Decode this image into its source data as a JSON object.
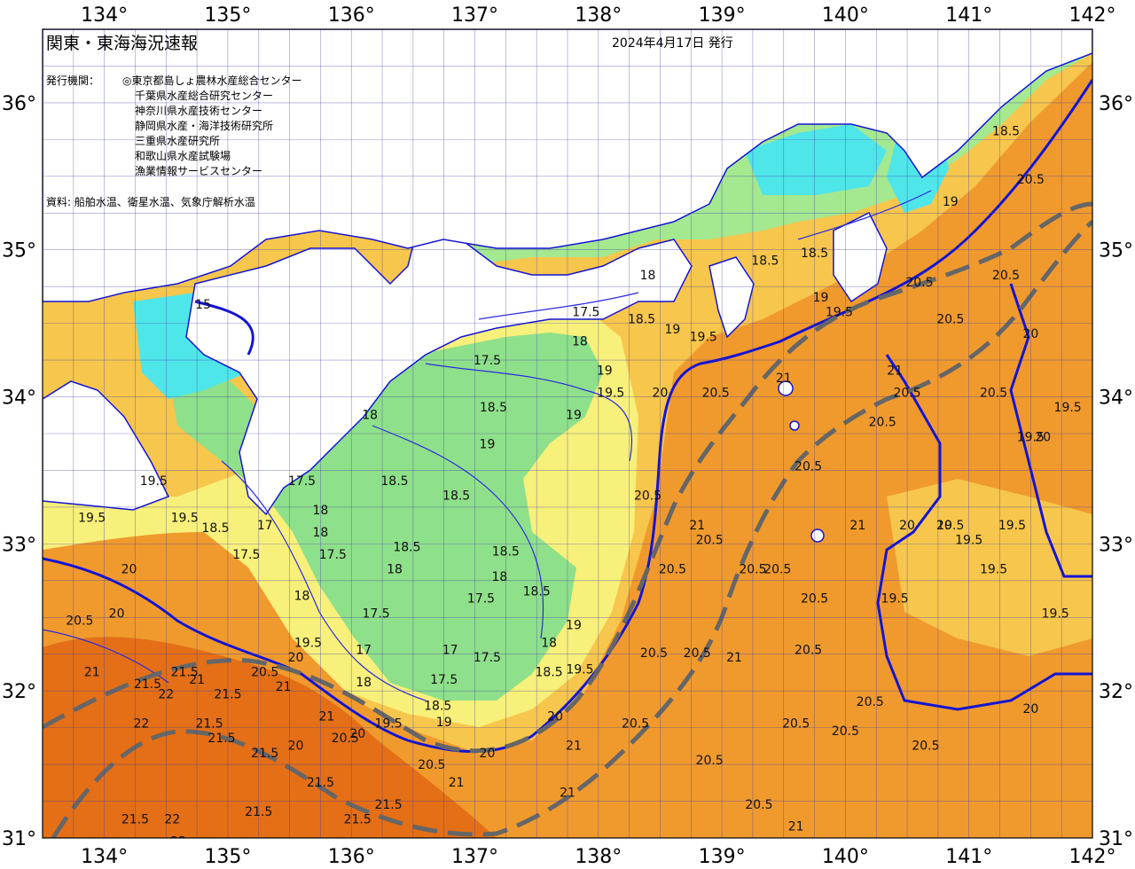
{
  "header": {
    "title": "関東・東海海況速報",
    "issue_date": "2024年4月17日 発行",
    "org_label": "発行機関：",
    "organizations": [
      "◎東京都島しょ農林水産総合センター",
      "千葉県水産総合研究センター",
      "神奈川県水産技術センター",
      "静岡県水産・海洋技術研究所",
      "三重県水産研究所",
      "和歌山県水産試験場",
      "漁業情報サービスセンター"
    ],
    "source": "資料: 船舶水温、衛星水温、気象庁解析水温"
  },
  "axes": {
    "longitude_labels": [
      "134°",
      "135°",
      "136°",
      "137°",
      "138°",
      "139°",
      "140°",
      "141°",
      "142°"
    ],
    "latitude_labels": [
      "36°",
      "35°",
      "34°",
      "33°",
      "32°",
      "31°"
    ]
  },
  "colors": {
    "sea_warm": "#f09a2e",
    "sea_hot": "#e46f16",
    "sea_mid": "#f7c64c",
    "sea_yellow": "#f7f07a",
    "sea_green": "#8fe08a",
    "sea_cyan": "#4fe6ea",
    "land": "#ffffff",
    "isotherm": "#1414d2",
    "kuroshio": "#666666"
  },
  "isotherm_labels": [
    {
      "text": "15",
      "lon": 134.8,
      "lat": 34.6
    },
    {
      "text": "17.5",
      "lon": 137.9,
      "lat": 34.55
    },
    {
      "text": "18",
      "lon": 138.4,
      "lat": 34.8
    },
    {
      "text": "17.5",
      "lon": 137.1,
      "lat": 34.22
    },
    {
      "text": "18.5",
      "lon": 137.15,
      "lat": 33.9
    },
    {
      "text": "18",
      "lon": 136.15,
      "lat": 33.85
    },
    {
      "text": "18.5",
      "lon": 136.35,
      "lat": 33.4
    },
    {
      "text": "18.5",
      "lon": 136.85,
      "lat": 33.3
    },
    {
      "text": "19",
      "lon": 137.1,
      "lat": 33.65
    },
    {
      "text": "19",
      "lon": 137.8,
      "lat": 33.85
    },
    {
      "text": "19.5",
      "lon": 138.1,
      "lat": 34.0
    },
    {
      "text": "19",
      "lon": 138.05,
      "lat": 34.15
    },
    {
      "text": "18",
      "lon": 137.85,
      "lat": 34.35
    },
    {
      "text": "18.5",
      "lon": 138.35,
      "lat": 34.5
    },
    {
      "text": "19",
      "lon": 138.6,
      "lat": 34.43
    },
    {
      "text": "19.5",
      "lon": 138.85,
      "lat": 34.38
    },
    {
      "text": "20",
      "lon": 138.5,
      "lat": 34.0
    },
    {
      "text": "20.5",
      "lon": 138.95,
      "lat": 34.0
    },
    {
      "text": "18.5",
      "lon": 139.35,
      "lat": 34.9
    },
    {
      "text": "18.5",
      "lon": 139.75,
      "lat": 34.95
    },
    {
      "text": "19",
      "lon": 139.8,
      "lat": 34.65
    },
    {
      "text": "19.5",
      "lon": 139.95,
      "lat": 34.55
    },
    {
      "text": "20.5",
      "lon": 140.6,
      "lat": 34.75
    },
    {
      "text": "20.5",
      "lon": 140.85,
      "lat": 34.5
    },
    {
      "text": "20.5",
      "lon": 141.3,
      "lat": 34.8
    },
    {
      "text": "20",
      "lon": 141.5,
      "lat": 34.4
    },
    {
      "text": "19",
      "lon": 140.85,
      "lat": 35.3
    },
    {
      "text": "18.5",
      "lon": 141.3,
      "lat": 35.78
    },
    {
      "text": "20.5",
      "lon": 141.5,
      "lat": 35.45
    },
    {
      "text": "21",
      "lon": 139.5,
      "lat": 34.1
    },
    {
      "text": "20.5",
      "lon": 140.3,
      "lat": 33.8
    },
    {
      "text": "20.5",
      "lon": 139.7,
      "lat": 33.5
    },
    {
      "text": "20.5",
      "lon": 138.4,
      "lat": 33.3
    },
    {
      "text": "21",
      "lon": 138.8,
      "lat": 33.1
    },
    {
      "text": "20.5",
      "lon": 138.9,
      "lat": 33.0
    },
    {
      "text": "20.5",
      "lon": 138.6,
      "lat": 32.8
    },
    {
      "text": "20.5",
      "lon": 139.25,
      "lat": 32.8
    },
    {
      "text": "20.5",
      "lon": 139.45,
      "lat": 32.8
    },
    {
      "text": "20.5",
      "lon": 139.75,
      "lat": 32.6
    },
    {
      "text": "20.5",
      "lon": 138.45,
      "lat": 32.23
    },
    {
      "text": "20.5",
      "lon": 138.8,
      "lat": 32.23
    },
    {
      "text": "21",
      "lon": 139.1,
      "lat": 32.2
    },
    {
      "text": "20.5",
      "lon": 139.7,
      "lat": 32.25
    },
    {
      "text": "20.5",
      "lon": 140.2,
      "lat": 31.9
    },
    {
      "text": "20.5",
      "lon": 139.6,
      "lat": 31.75
    },
    {
      "text": "20.5",
      "lon": 140.0,
      "lat": 31.7
    },
    {
      "text": "20.5",
      "lon": 138.9,
      "lat": 31.5
    },
    {
      "text": "20.5",
      "lon": 140.65,
      "lat": 31.6
    },
    {
      "text": "20.5",
      "lon": 139.3,
      "lat": 31.2
    },
    {
      "text": "20.5",
      "lon": 138.3,
      "lat": 31.75
    },
    {
      "text": "21",
      "lon": 139.6,
      "lat": 31.05
    },
    {
      "text": "21",
      "lon": 140.1,
      "lat": 33.1
    },
    {
      "text": "20",
      "lon": 140.5,
      "lat": 33.1
    },
    {
      "text": "20",
      "lon": 140.8,
      "lat": 33.1
    },
    {
      "text": "20",
      "lon": 141.5,
      "lat": 31.85
    },
    {
      "text": "19.5",
      "lon": 140.85,
      "lat": 33.1
    },
    {
      "text": "19.5",
      "lon": 141.0,
      "lat": 33.0
    },
    {
      "text": "19.5",
      "lon": 141.35,
      "lat": 33.1
    },
    {
      "text": "19.5",
      "lon": 141.5,
      "lat": 33.7
    },
    {
      "text": "19.5",
      "lon": 141.8,
      "lat": 33.9
    },
    {
      "text": "19.5",
      "lon": 141.7,
      "lat": 32.5
    },
    {
      "text": "19.5",
      "lon": 141.2,
      "lat": 32.8
    },
    {
      "text": "19.5",
      "lon": 140.4,
      "lat": 32.6
    },
    {
      "text": "20",
      "lon": 141.6,
      "lat": 33.7
    },
    {
      "text": "20.5",
      "lon": 141.2,
      "lat": 34.0
    },
    {
      "text": "20.5",
      "lon": 140.5,
      "lat": 34.0
    },
    {
      "text": "21",
      "lon": 140.4,
      "lat": 34.15
    },
    {
      "text": "19.5",
      "lon": 134.4,
      "lat": 33.4
    },
    {
      "text": "19.5",
      "lon": 134.65,
      "lat": 33.15
    },
    {
      "text": "18.5",
      "lon": 134.9,
      "lat": 33.08
    },
    {
      "text": "17.5",
      "lon": 135.15,
      "lat": 32.9
    },
    {
      "text": "17",
      "lon": 135.3,
      "lat": 33.1
    },
    {
      "text": "18",
      "lon": 135.6,
      "lat": 32.62
    },
    {
      "text": "18",
      "lon": 135.75,
      "lat": 33.05
    },
    {
      "text": "17.5",
      "lon": 135.85,
      "lat": 32.9
    },
    {
      "text": "17.5",
      "lon": 135.6,
      "lat": 33.4
    },
    {
      "text": "18",
      "lon": 135.75,
      "lat": 33.2
    },
    {
      "text": "17.5",
      "lon": 136.2,
      "lat": 32.5
    },
    {
      "text": "18",
      "lon": 136.35,
      "lat": 32.8
    },
    {
      "text": "18.5",
      "lon": 136.45,
      "lat": 32.95
    },
    {
      "text": "18.5",
      "lon": 137.25,
      "lat": 32.92
    },
    {
      "text": "18",
      "lon": 137.2,
      "lat": 32.75
    },
    {
      "text": "17.5",
      "lon": 137.05,
      "lat": 32.6
    },
    {
      "text": "18.5",
      "lon": 137.5,
      "lat": 32.65
    },
    {
      "text": "17.5",
      "lon": 137.1,
      "lat": 32.2
    },
    {
      "text": "17",
      "lon": 136.8,
      "lat": 32.25
    },
    {
      "text": "17",
      "lon": 136.1,
      "lat": 32.25
    },
    {
      "text": "18",
      "lon": 136.1,
      "lat": 32.03
    },
    {
      "text": "17.5",
      "lon": 136.75,
      "lat": 32.05
    },
    {
      "text": "18.5",
      "lon": 136.7,
      "lat": 31.87
    },
    {
      "text": "19",
      "lon": 136.75,
      "lat": 31.76
    },
    {
      "text": "18",
      "lon": 137.6,
      "lat": 32.3
    },
    {
      "text": "19",
      "lon": 137.8,
      "lat": 32.42
    },
    {
      "text": "19.5",
      "lon": 137.85,
      "lat": 32.12
    },
    {
      "text": "18.5",
      "lon": 137.6,
      "lat": 32.1
    },
    {
      "text": "20",
      "lon": 137.65,
      "lat": 31.8
    },
    {
      "text": "19.5",
      "lon": 136.3,
      "lat": 31.75
    },
    {
      "text": "20",
      "lon": 136.05,
      "lat": 31.68
    },
    {
      "text": "20.5",
      "lon": 136.65,
      "lat": 31.47
    },
    {
      "text": "21",
      "lon": 136.85,
      "lat": 31.35
    },
    {
      "text": "20",
      "lon": 137.1,
      "lat": 31.55
    },
    {
      "text": "21",
      "lon": 137.8,
      "lat": 31.6
    },
    {
      "text": "21",
      "lon": 137.75,
      "lat": 31.28
    },
    {
      "text": "21.5",
      "lon": 136.3,
      "lat": 31.2
    },
    {
      "text": "21.5",
      "lon": 136.05,
      "lat": 31.1
    },
    {
      "text": "21.5",
      "lon": 135.75,
      "lat": 31.35
    },
    {
      "text": "21.5",
      "lon": 135.3,
      "lat": 31.55
    },
    {
      "text": "21.5",
      "lon": 135.0,
      "lat": 31.95
    },
    {
      "text": "21.5",
      "lon": 134.85,
      "lat": 31.75
    },
    {
      "text": "21.5",
      "lon": 134.95,
      "lat": 31.65
    },
    {
      "text": "21.5",
      "lon": 134.65,
      "lat": 32.1
    },
    {
      "text": "21.5",
      "lon": 134.35,
      "lat": 32.02
    },
    {
      "text": "21",
      "lon": 134.75,
      "lat": 32.05
    },
    {
      "text": "21",
      "lon": 135.8,
      "lat": 31.8
    },
    {
      "text": "21.5",
      "lon": 134.25,
      "lat": 31.1
    },
    {
      "text": "22",
      "lon": 134.5,
      "lat": 31.95
    },
    {
      "text": "22",
      "lon": 134.3,
      "lat": 31.75
    },
    {
      "text": "22",
      "lon": 134.55,
      "lat": 31.1
    },
    {
      "text": "22",
      "lon": 134.6,
      "lat": 30.95
    },
    {
      "text": "21",
      "lon": 133.9,
      "lat": 32.1
    },
    {
      "text": "21.5",
      "lon": 135.25,
      "lat": 31.15
    },
    {
      "text": "20.5",
      "lon": 133.8,
      "lat": 32.45
    },
    {
      "text": "20",
      "lon": 134.1,
      "lat": 32.5
    },
    {
      "text": "20",
      "lon": 134.2,
      "lat": 32.8
    },
    {
      "text": "20",
      "lon": 135.55,
      "lat": 31.6
    },
    {
      "text": "20.5",
      "lon": 135.3,
      "lat": 32.1
    },
    {
      "text": "21",
      "lon": 135.45,
      "lat": 32.0
    },
    {
      "text": "19.5",
      "lon": 135.65,
      "lat": 32.3
    },
    {
      "text": "20",
      "lon": 135.55,
      "lat": 32.2
    },
    {
      "text": "20.5",
      "lon": 135.95,
      "lat": 31.65
    },
    {
      "text": "19.5",
      "lon": 133.9,
      "lat": 33.15
    }
  ],
  "kuroshio_legend": "",
  "chart_data": {
    "type": "map",
    "lon_range": [
      133.5,
      142.0
    ],
    "lat_range": [
      31.0,
      36.5
    ],
    "grid_step_deg": 0.25
  }
}
